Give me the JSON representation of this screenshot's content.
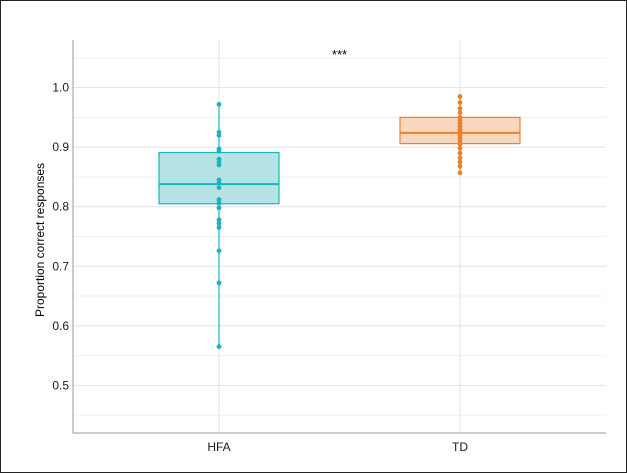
{
  "chart_data": {
    "type": "box",
    "title": "",
    "xlabel": "",
    "ylabel": "Proportion correct responses",
    "ylim": [
      0.42,
      1.08
    ],
    "yticks": [
      0.5,
      0.6,
      0.7,
      0.8,
      0.9,
      1.0
    ],
    "ytick_labels": [
      "0.5",
      "0.6",
      "0.7",
      "0.8",
      "0.9",
      "1.0"
    ],
    "grid": true,
    "legend": "none",
    "categories": [
      "HFA",
      "TD"
    ],
    "groups": [
      {
        "name": "HFA",
        "color": "#1bb3bf",
        "fill": "#b6e3e6",
        "min": 0.565,
        "q1": 0.805,
        "median": 0.838,
        "q3": 0.891,
        "max": 0.972,
        "points": [
          0.972,
          0.925,
          0.92,
          0.897,
          0.893,
          0.88,
          0.875,
          0.87,
          0.845,
          0.84,
          0.832,
          0.812,
          0.806,
          0.798,
          0.778,
          0.772,
          0.765,
          0.726,
          0.672,
          0.565
        ]
      },
      {
        "name": "TD",
        "color": "#e8812e",
        "fill": "#f7d7bd",
        "min": 0.857,
        "q1": 0.906,
        "median": 0.924,
        "q3": 0.95,
        "max": 0.985,
        "points": [
          0.985,
          0.975,
          0.965,
          0.958,
          0.95,
          0.945,
          0.94,
          0.935,
          0.93,
          0.927,
          0.924,
          0.92,
          0.915,
          0.91,
          0.905,
          0.898,
          0.89,
          0.882,
          0.875,
          0.868,
          0.857
        ]
      }
    ],
    "annotations": [
      {
        "text": "***",
        "x": 1.5,
        "y": 1.055
      }
    ]
  }
}
